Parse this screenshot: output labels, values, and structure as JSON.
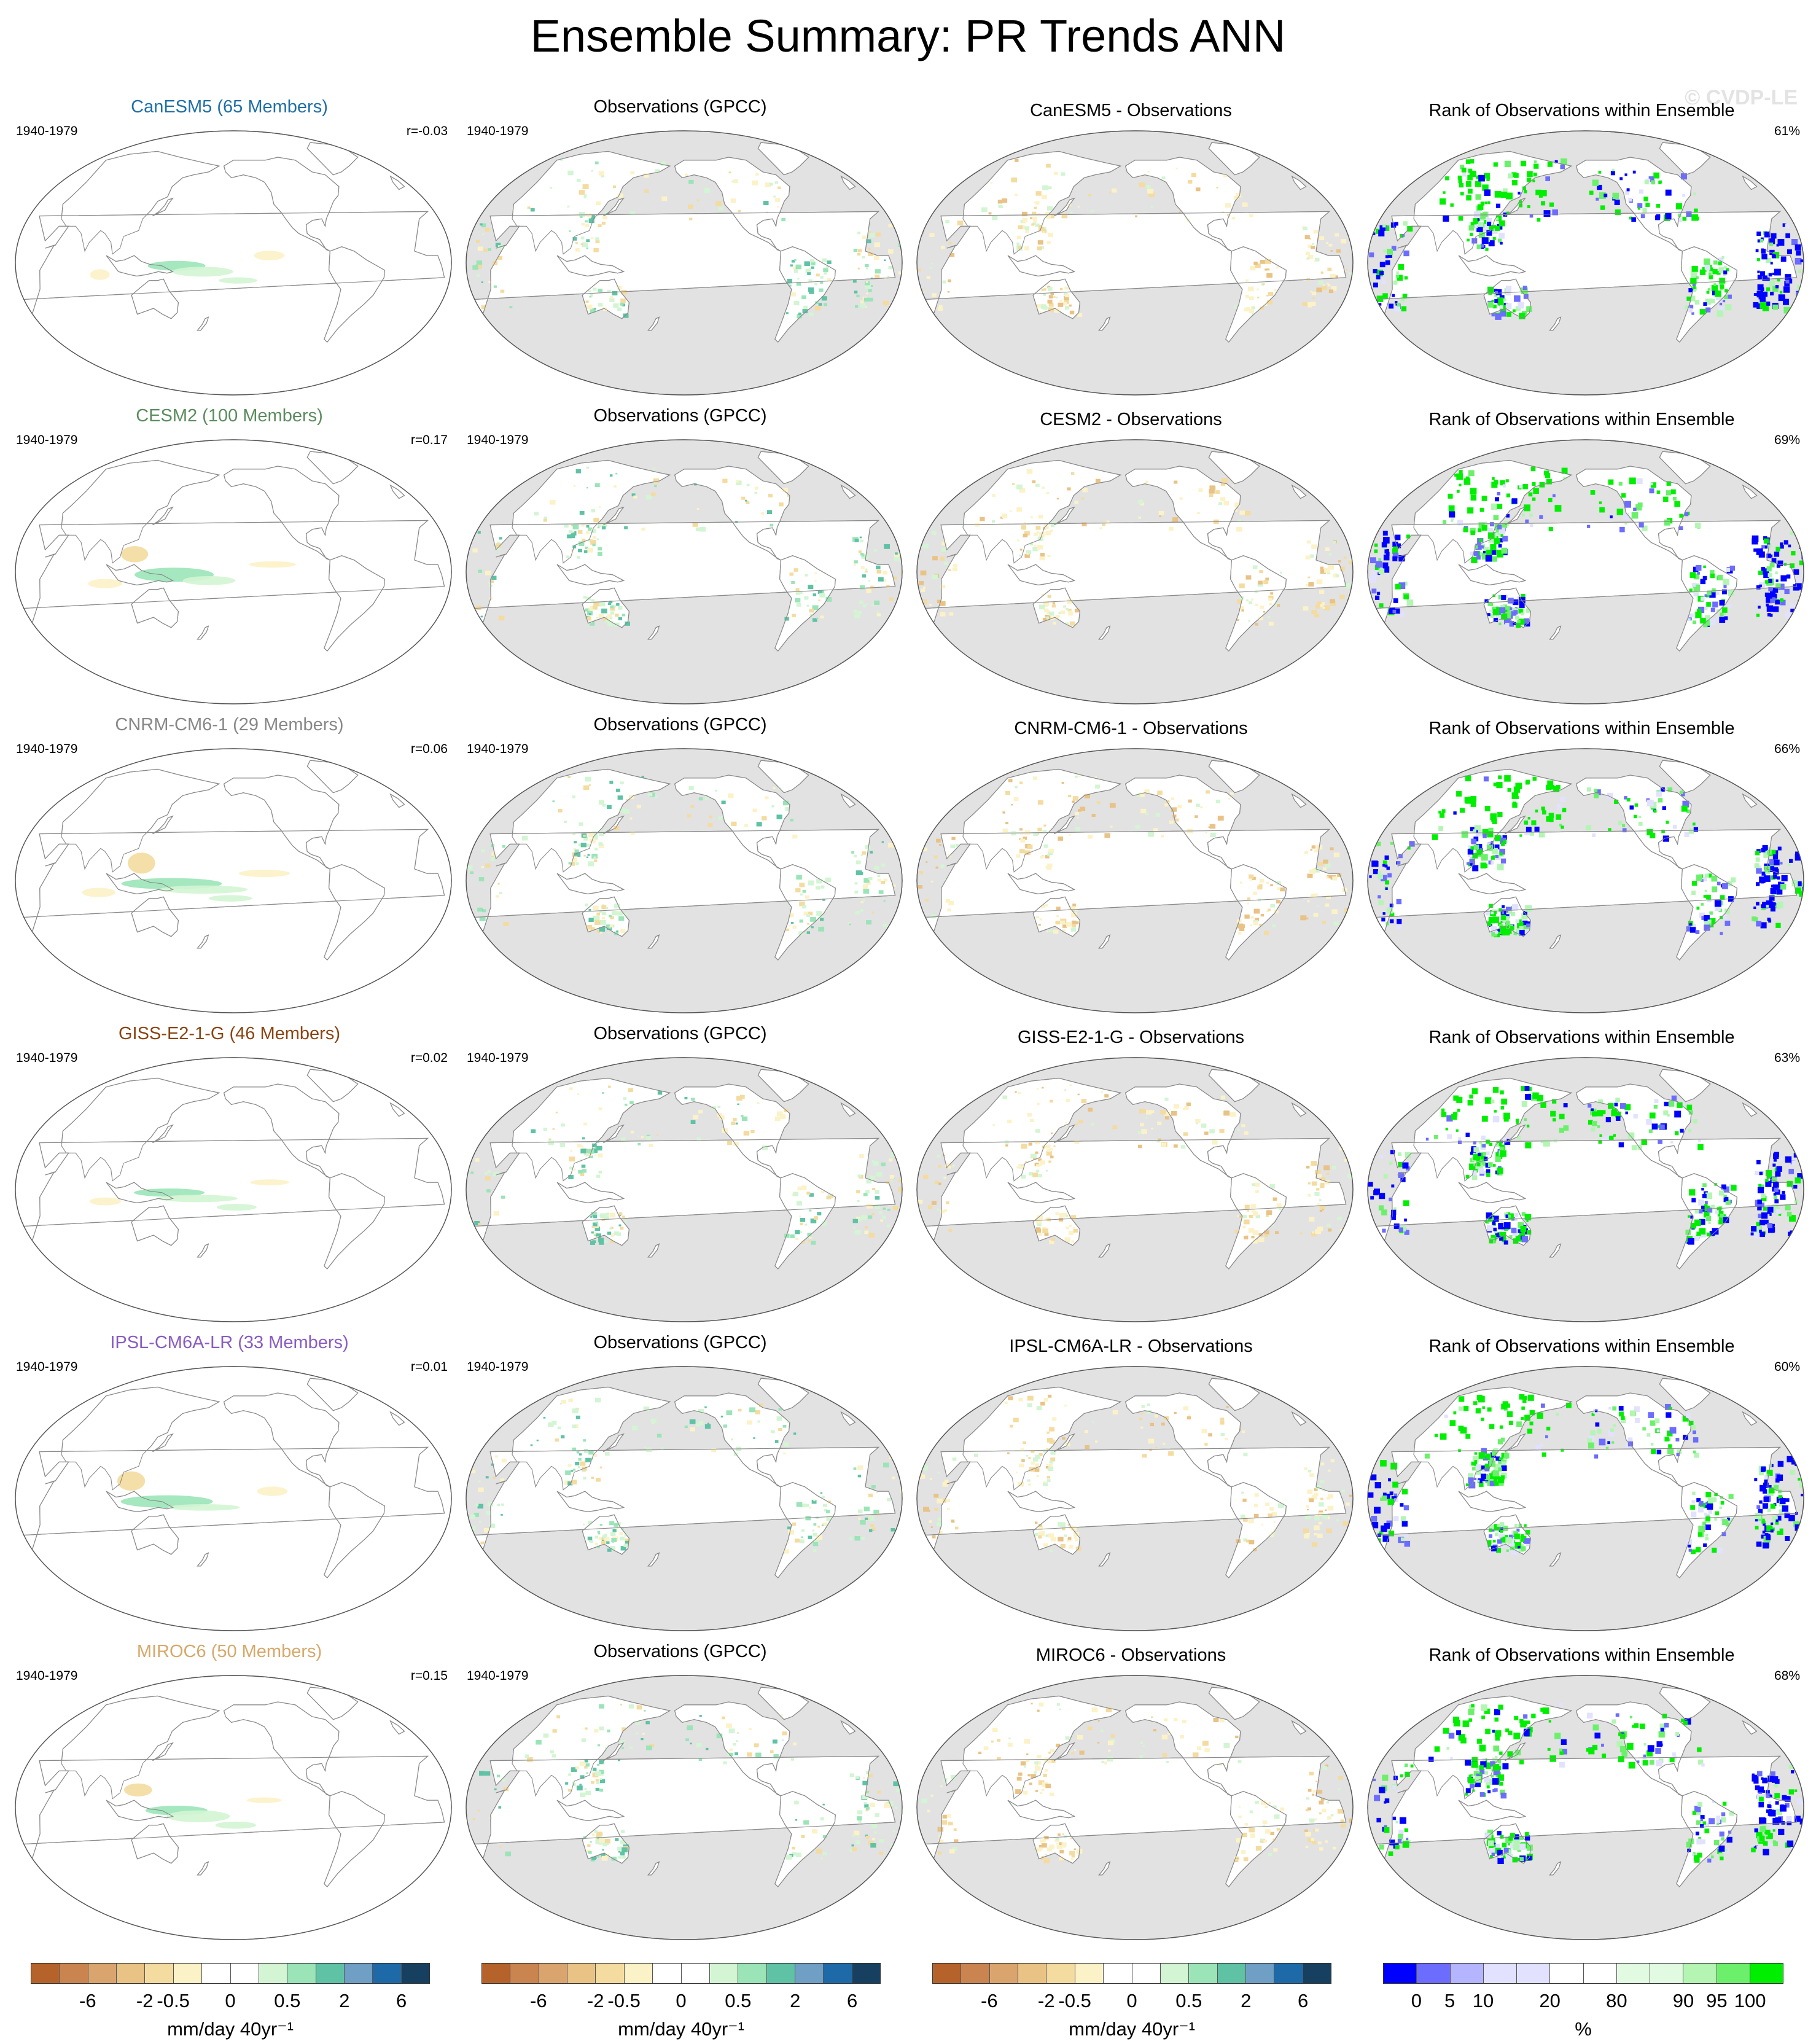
{
  "figure": {
    "title": "Ensemble Summary: PR Trends ANN",
    "copyright": "© CVDP-LE"
  },
  "colors": {
    "ocean_obs": "#e2e2e2",
    "land_obs": "#ffffff",
    "coast": "#8a8a8a"
  },
  "rows": [
    {
      "model_title": "CanESM5 (65 Members)",
      "model_color": "#1f6fa6",
      "period": "1940-1979",
      "corr": "r=-0.03",
      "obs_title": "Observations (GPCC)",
      "obs_period": "1940-1979",
      "diff_title": "CanESM5 - Observations",
      "rank_title": "Rank of Observations within Ensemble",
      "rank_pct": "61%"
    },
    {
      "model_title": "CESM2 (100 Members)",
      "model_color": "#5b8c5e",
      "period": "1940-1979",
      "corr": "r=0.17",
      "obs_title": "Observations (GPCC)",
      "obs_period": "1940-1979",
      "diff_title": "CESM2 - Observations",
      "rank_title": "Rank of Observations within Ensemble",
      "rank_pct": "69%"
    },
    {
      "model_title": "CNRM-CM6-1 (29 Members)",
      "model_color": "#888888",
      "period": "1940-1979",
      "corr": "r=0.06",
      "obs_title": "Observations (GPCC)",
      "obs_period": "1940-1979",
      "diff_title": "CNRM-CM6-1 - Observations",
      "rank_title": "Rank of Observations within Ensemble",
      "rank_pct": "66%"
    },
    {
      "model_title": "GISS-E2-1-G (46 Members)",
      "model_color": "#8b4513",
      "period": "1940-1979",
      "corr": "r=0.02",
      "obs_title": "Observations (GPCC)",
      "obs_period": "1940-1979",
      "diff_title": "GISS-E2-1-G - Observations",
      "rank_title": "Rank of Observations within Ensemble",
      "rank_pct": "63%"
    },
    {
      "model_title": "IPSL-CM6A-LR (33 Members)",
      "model_color": "#8a5cc2",
      "period": "1940-1979",
      "corr": "r=0.01",
      "obs_title": "Observations (GPCC)",
      "obs_period": "1940-1979",
      "diff_title": "IPSL-CM6A-LR - Observations",
      "rank_title": "Rank of Observations within Ensemble",
      "rank_pct": "60%"
    },
    {
      "model_title": "MIROC6 (50 Members)",
      "model_color": "#d7a86a",
      "period": "1940-1979",
      "corr": "r=0.15",
      "obs_title": "Observations (GPCC)",
      "obs_period": "1940-1979",
      "diff_title": "MIROC6 - Observations",
      "rank_title": "Rank of Observations within Ensemble",
      "rank_pct": "68%"
    }
  ],
  "colorbars": [
    {
      "name": "model",
      "label": "mm/day 40yr⁻¹",
      "colors": [
        "#b5632a",
        "#c98450",
        "#daa46e",
        "#e9c285",
        "#f4db9f",
        "#fcf2c8",
        "#ffffff",
        "#ffffff",
        "#d3f5d3",
        "#9be4b8",
        "#5fc2a5",
        "#6f9fc4",
        "#1e6aa8",
        "#173f5f"
      ],
      "ticks": [
        "-6",
        "-2",
        "-0.5",
        "0",
        "0.5",
        "2",
        "6"
      ]
    },
    {
      "name": "obs",
      "label": "mm/day 40yr⁻¹",
      "colors": [
        "#b5632a",
        "#c98450",
        "#daa46e",
        "#e9c285",
        "#f4db9f",
        "#fcf2c8",
        "#ffffff",
        "#ffffff",
        "#d3f5d3",
        "#9be4b8",
        "#5fc2a5",
        "#6f9fc4",
        "#1e6aa8",
        "#173f5f"
      ],
      "ticks": [
        "-6",
        "-2",
        "-0.5",
        "0",
        "0.5",
        "2",
        "6"
      ]
    },
    {
      "name": "diff",
      "label": "mm/day 40yr⁻¹",
      "colors": [
        "#b5632a",
        "#c98450",
        "#daa46e",
        "#e9c285",
        "#f4db9f",
        "#fcf2c8",
        "#ffffff",
        "#ffffff",
        "#d3f5d3",
        "#9be4b8",
        "#5fc2a5",
        "#6f9fc4",
        "#1e6aa8",
        "#173f5f"
      ],
      "ticks": [
        "-6",
        "-2",
        "-0.5",
        "0",
        "0.5",
        "2",
        "6"
      ]
    },
    {
      "name": "rank",
      "label": "%",
      "colors": [
        "#0000ff",
        "#6c6cff",
        "#b4b4ff",
        "#e2e2ff",
        "#e2e2ff",
        "#ffffff",
        "#ffffff",
        "#e2fae2",
        "#e2fae2",
        "#b4f5b4",
        "#6cf06c",
        "#00ee00"
      ],
      "ticks": [
        "0",
        "5",
        "10",
        "20",
        "80",
        "90",
        "95",
        "100"
      ]
    }
  ]
}
